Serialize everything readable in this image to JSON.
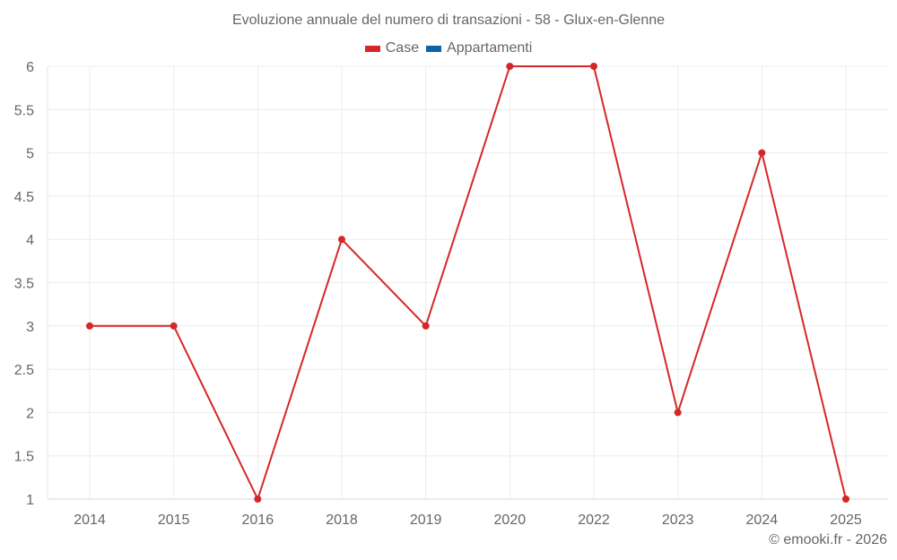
{
  "header": {
    "title": "Evoluzione annuale del numero di transazioni - 58 - Glux-en-Glenne"
  },
  "legend": [
    {
      "label": "Case",
      "color": "#d62728"
    },
    {
      "label": "Appartamenti",
      "color": "#0b62a4"
    }
  ],
  "footer": {
    "credit": "© emooki.fr - 2026"
  },
  "chart_data": {
    "type": "line",
    "title": "Evoluzione annuale del numero di transazioni - 58 - Glux-en-Glenne",
    "xlabel": "",
    "ylabel": "",
    "categories": [
      "2014",
      "2015",
      "2016",
      "2018",
      "2019",
      "2020",
      "2022",
      "2023",
      "2024",
      "2025"
    ],
    "series": [
      {
        "name": "Case",
        "color": "#d62728",
        "values": [
          3,
          3,
          1,
          4,
          3,
          6,
          6,
          2,
          5,
          1
        ]
      },
      {
        "name": "Appartamenti",
        "color": "#0b62a4",
        "values": []
      }
    ],
    "ylim": [
      1,
      6
    ],
    "yticks": [
      "1",
      "1.5",
      "2",
      "2.5",
      "3",
      "3.5",
      "4",
      "4.5",
      "5",
      "5.5",
      "6"
    ],
    "grid": true,
    "legend_position": "top"
  }
}
